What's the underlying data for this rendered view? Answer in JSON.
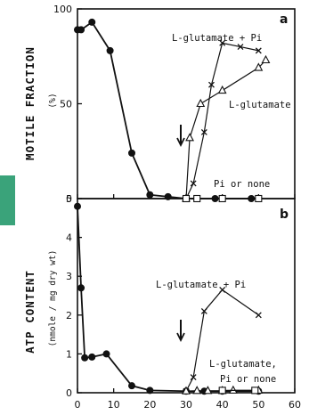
{
  "chart_data": [
    {
      "type": "line",
      "panel_label": "a",
      "ylabel": "MOTILE  FRACTION",
      "yunit": "(%)",
      "xlim": [
        0,
        60
      ],
      "ylim": [
        0,
        100
      ],
      "yticks": [
        "0",
        "50",
        "100"
      ],
      "series": [
        {
          "name": "",
          "marker": "filled-circle",
          "x": [
            0,
            1,
            4,
            9,
            15,
            20,
            25,
            30,
            33,
            38,
            40,
            48,
            50
          ],
          "y": [
            89,
            89,
            93,
            78,
            24,
            2,
            1,
            0,
            0,
            0,
            0,
            0,
            0
          ]
        },
        {
          "name": "L-glutamate + Pi",
          "marker": "x",
          "x": [
            30,
            32,
            35,
            37,
            40,
            45,
            50
          ],
          "y": [
            0,
            8,
            35,
            60,
            82,
            80,
            78
          ]
        },
        {
          "name": "L-glutamate",
          "marker": "open-triangle",
          "x": [
            30,
            31,
            34,
            40,
            50,
            52
          ],
          "y": [
            0,
            32,
            50,
            57,
            69,
            73
          ]
        },
        {
          "name": "Pi or none",
          "marker": "open-square",
          "x": [
            30,
            33,
            40,
            50
          ],
          "y": [
            0,
            0,
            0,
            0
          ]
        }
      ],
      "annotations": [
        "L-glutamate + Pi",
        "L-glutamate",
        "Pi or none"
      ],
      "arrow_x": 30
    },
    {
      "type": "line",
      "panel_label": "b",
      "ylabel": "ATP  CONTENT",
      "yunit": "(nmole / mg dry wt)",
      "xlim": [
        0,
        60
      ],
      "ylim": [
        0,
        5
      ],
      "xticks": [
        "0",
        "10",
        "20",
        "30",
        "40",
        "50",
        "60"
      ],
      "yticks": [
        "0",
        "1",
        "2",
        "3",
        "4",
        "5"
      ],
      "series": [
        {
          "name": "",
          "marker": "filled-circle",
          "x": [
            0,
            1,
            2,
            4,
            8,
            15,
            20,
            30,
            35,
            40,
            50
          ],
          "y": [
            4.8,
            2.7,
            0.9,
            0.92,
            1.0,
            0.18,
            0.06,
            0.04,
            0.04,
            0.04,
            0.04
          ]
        },
        {
          "name": "L-glutamate + Pi",
          "marker": "x",
          "x": [
            30,
            32,
            35,
            40,
            50
          ],
          "y": [
            0.04,
            0.4,
            2.1,
            2.65,
            2.0
          ]
        },
        {
          "name": "L-glutamate, Pi or none",
          "marker": "open-triangle",
          "x": [
            30,
            33,
            36,
            40,
            43,
            50
          ],
          "y": [
            0.04,
            0.05,
            0.05,
            0.05,
            0.06,
            0.06
          ]
        },
        {
          "name": "",
          "marker": "open-square",
          "x": [
            40,
            49
          ],
          "y": [
            0.06,
            0.06
          ]
        }
      ],
      "annotations": [
        "L-glutamate + Pi",
        "L-glutamate,",
        "Pi or none"
      ],
      "arrow_x": 30
    }
  ]
}
